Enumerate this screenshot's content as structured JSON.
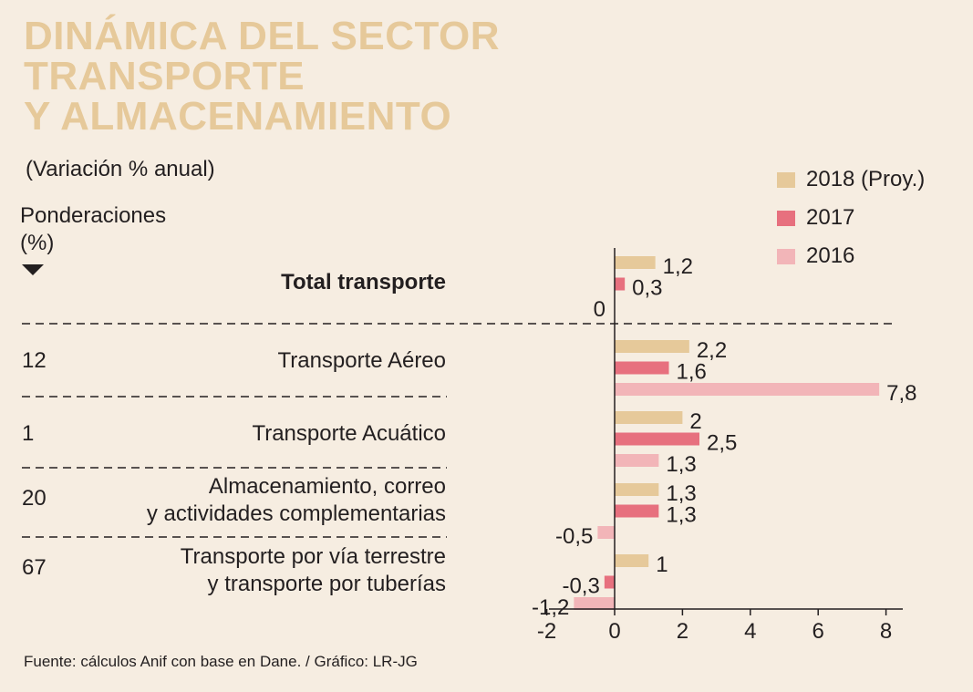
{
  "title": {
    "line1": "DINÁMICA DEL SECTOR",
    "line2": "TRANSPORTE",
    "line3": "Y ALMACENAMIENTO"
  },
  "subtitle": "(Variación % anual)",
  "ponderaciones": {
    "line1": "Ponderaciones",
    "line2": "(%)"
  },
  "legend": [
    {
      "label": "2018 (Proy.)",
      "color": "#e6c99a"
    },
    {
      "label": "2017",
      "color": "#e7707e"
    },
    {
      "label": "2016",
      "color": "#f2b5b8"
    }
  ],
  "rows": [
    {
      "weight": "",
      "label_lines": [
        "Total transporte"
      ],
      "bold": true
    },
    {
      "weight": "12",
      "label_lines": [
        "Transporte Aéreo"
      ],
      "bold": false
    },
    {
      "weight": "1",
      "label_lines": [
        "Transporte Acuático"
      ],
      "bold": false
    },
    {
      "weight": "20",
      "label_lines": [
        "Almacenamiento, correo",
        "y actividades complementarias"
      ],
      "bold": false
    },
    {
      "weight": "67",
      "label_lines": [
        "Transporte por vía terrestre",
        "y transporte por tuberías"
      ],
      "bold": false
    }
  ],
  "source": "Fuente: cálculos Anif con base en Dane. / Gráfico: LR-JG",
  "chart_data": {
    "type": "bar",
    "orientation": "horizontal",
    "title": "DINÁMICA DEL SECTOR TRANSPORTE Y ALMACENAMIENTO",
    "subtitle": "(Variación % anual)",
    "categories": [
      "Total transporte",
      "Transporte Aéreo",
      "Transporte Acuático",
      "Almacenamiento, correo y actividades complementarias",
      "Transporte por vía terrestre y transporte por tuberías"
    ],
    "series": [
      {
        "name": "2018 (Proy.)",
        "values": [
          1.2,
          2.2,
          2,
          1.3,
          1
        ],
        "labels": [
          "1,2",
          "2,2",
          "2",
          "1,3",
          "1"
        ]
      },
      {
        "name": "2017",
        "values": [
          0.3,
          1.6,
          2.5,
          1.3,
          -0.3
        ],
        "labels": [
          "0,3",
          "1,6",
          "2,5",
          "1,3",
          "-0,3"
        ]
      },
      {
        "name": "2016",
        "values": [
          0,
          7.8,
          1.3,
          -0.5,
          -1.2
        ],
        "labels": [
          "0",
          "7,8",
          "1,3",
          "-0,5",
          "-1,2"
        ]
      }
    ],
    "xlim": [
      -2,
      8.5
    ],
    "xticks": [
      -2,
      0,
      2,
      4,
      6,
      8
    ],
    "xtick_labels": [
      "-2",
      "0",
      "2",
      "4",
      "6",
      "8"
    ],
    "xlabel": "",
    "ylabel": "",
    "legend_position": "top-right"
  }
}
